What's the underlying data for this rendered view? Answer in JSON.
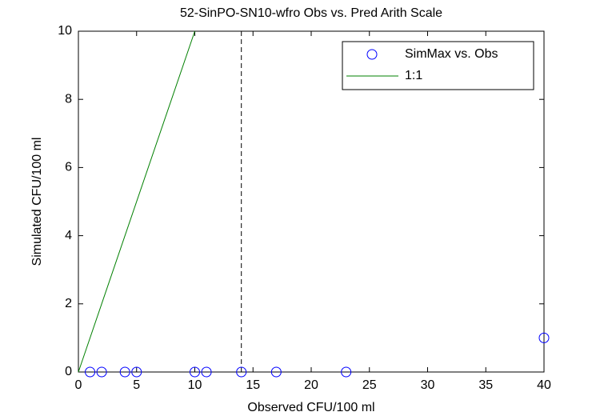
{
  "chart_data": {
    "type": "scatter",
    "title": "52-SinPO-SN10-wfro Obs vs. Pred Arith Scale",
    "x_label": "Observed CFU/100 ml",
    "y_label": "Simulated CFU/100 ml",
    "xlim": [
      0,
      40
    ],
    "xticks": [
      0,
      5,
      10,
      15,
      20,
      25,
      30,
      35,
      40
    ],
    "ylim": [
      0,
      10
    ],
    "yticks": [
      0,
      2,
      4,
      6,
      8,
      10
    ],
    "grid": false,
    "legend": "northeast",
    "series": [
      {
        "name": "SimMax vs. Obs",
        "color": "#0000ff",
        "marker": "circle",
        "x": [
          1,
          2,
          4,
          5,
          10,
          11,
          14,
          17,
          23,
          40
        ],
        "values": [
          0,
          0,
          0,
          0,
          0,
          0,
          0,
          0,
          0,
          1
        ]
      },
      {
        "name": "1:1",
        "color": "#008000",
        "marker": "line",
        "x": [
          0,
          10
        ],
        "values": [
          0,
          10
        ]
      }
    ],
    "vline": {
      "x": 14,
      "color": "#000000",
      "style": "dashed"
    }
  }
}
